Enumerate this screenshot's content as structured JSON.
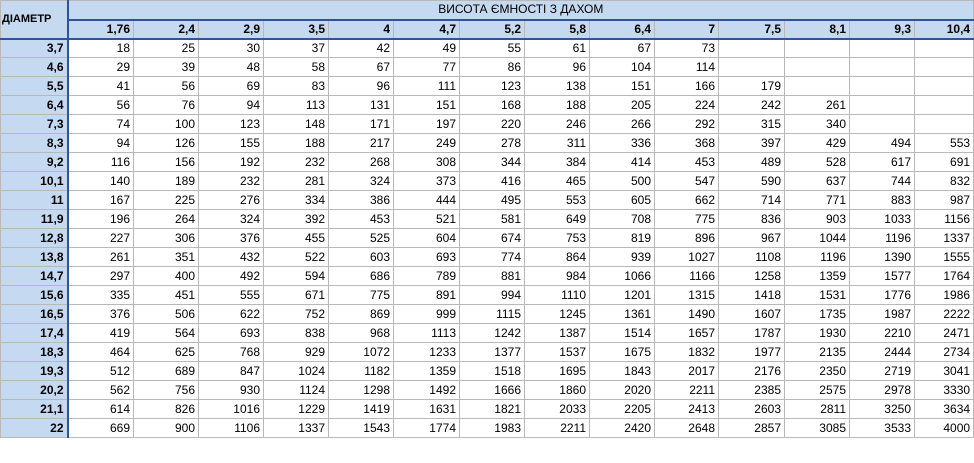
{
  "table": {
    "corner_label": "ДІАМЕТР",
    "title": "ВИСОТА ЄМНОСТІ З ДАХОМ",
    "heights": [
      "1,76",
      "2,4",
      "2,9",
      "3,5",
      "4",
      "4,7",
      "5,2",
      "5,8",
      "6,4",
      "7",
      "7,5",
      "8,1",
      "9,3",
      "10,4"
    ],
    "rows": [
      {
        "diameter": "3,7",
        "values": [
          "18",
          "25",
          "30",
          "37",
          "42",
          "49",
          "55",
          "61",
          "67",
          "73",
          "",
          "",
          "",
          ""
        ]
      },
      {
        "diameter": "4,6",
        "values": [
          "29",
          "39",
          "48",
          "58",
          "67",
          "77",
          "86",
          "96",
          "104",
          "114",
          "",
          "",
          "",
          ""
        ]
      },
      {
        "diameter": "5,5",
        "values": [
          "41",
          "56",
          "69",
          "83",
          "96",
          "111",
          "123",
          "138",
          "151",
          "166",
          "179",
          "",
          "",
          ""
        ]
      },
      {
        "diameter": "6,4",
        "values": [
          "56",
          "76",
          "94",
          "113",
          "131",
          "151",
          "168",
          "188",
          "205",
          "224",
          "242",
          "261",
          "",
          ""
        ]
      },
      {
        "diameter": "7,3",
        "values": [
          "74",
          "100",
          "123",
          "148",
          "171",
          "197",
          "220",
          "246",
          "266",
          "292",
          "315",
          "340",
          "",
          ""
        ]
      },
      {
        "diameter": "8,3",
        "values": [
          "94",
          "126",
          "155",
          "188",
          "217",
          "249",
          "278",
          "311",
          "336",
          "368",
          "397",
          "429",
          "494",
          "553"
        ]
      },
      {
        "diameter": "9,2",
        "values": [
          "116",
          "156",
          "192",
          "232",
          "268",
          "308",
          "344",
          "384",
          "414",
          "453",
          "489",
          "528",
          "617",
          "691"
        ]
      },
      {
        "diameter": "10,1",
        "values": [
          "140",
          "189",
          "232",
          "281",
          "324",
          "373",
          "416",
          "465",
          "500",
          "547",
          "590",
          "637",
          "744",
          "832"
        ]
      },
      {
        "diameter": "11",
        "values": [
          "167",
          "225",
          "276",
          "334",
          "386",
          "444",
          "495",
          "553",
          "605",
          "662",
          "714",
          "771",
          "883",
          "987"
        ]
      },
      {
        "diameter": "11,9",
        "values": [
          "196",
          "264",
          "324",
          "392",
          "453",
          "521",
          "581",
          "649",
          "708",
          "775",
          "836",
          "903",
          "1033",
          "1156"
        ]
      },
      {
        "diameter": "12,8",
        "values": [
          "227",
          "306",
          "376",
          "455",
          "525",
          "604",
          "674",
          "753",
          "819",
          "896",
          "967",
          "1044",
          "1196",
          "1337"
        ]
      },
      {
        "diameter": "13,8",
        "values": [
          "261",
          "351",
          "432",
          "522",
          "603",
          "693",
          "774",
          "864",
          "939",
          "1027",
          "1108",
          "1196",
          "1390",
          "1555"
        ]
      },
      {
        "diameter": "14,7",
        "values": [
          "297",
          "400",
          "492",
          "594",
          "686",
          "789",
          "881",
          "984",
          "1066",
          "1166",
          "1258",
          "1359",
          "1577",
          "1764"
        ]
      },
      {
        "diameter": "15,6",
        "values": [
          "335",
          "451",
          "555",
          "671",
          "775",
          "891",
          "994",
          "1110",
          "1201",
          "1315",
          "1418",
          "1531",
          "1776",
          "1986"
        ]
      },
      {
        "diameter": "16,5",
        "values": [
          "376",
          "506",
          "622",
          "752",
          "869",
          "999",
          "1115",
          "1245",
          "1361",
          "1490",
          "1607",
          "1735",
          "1987",
          "2222"
        ]
      },
      {
        "diameter": "17,4",
        "values": [
          "419",
          "564",
          "693",
          "838",
          "968",
          "1113",
          "1242",
          "1387",
          "1514",
          "1657",
          "1787",
          "1930",
          "2210",
          "2471"
        ]
      },
      {
        "diameter": "18,3",
        "values": [
          "464",
          "625",
          "768",
          "929",
          "1072",
          "1233",
          "1377",
          "1537",
          "1675",
          "1832",
          "1977",
          "2135",
          "2444",
          "2734"
        ]
      },
      {
        "diameter": "19,3",
        "values": [
          "512",
          "689",
          "847",
          "1024",
          "1182",
          "1359",
          "1518",
          "1695",
          "1843",
          "2017",
          "2176",
          "2350",
          "2719",
          "3041"
        ]
      },
      {
        "diameter": "20,2",
        "values": [
          "562",
          "756",
          "930",
          "1124",
          "1298",
          "1492",
          "1666",
          "1860",
          "2020",
          "2211",
          "2385",
          "2575",
          "2978",
          "3330"
        ]
      },
      {
        "diameter": "21,1",
        "values": [
          "614",
          "826",
          "1016",
          "1229",
          "1419",
          "1631",
          "1821",
          "2033",
          "2205",
          "2413",
          "2603",
          "2811",
          "3250",
          "3634"
        ]
      },
      {
        "diameter": "22",
        "values": [
          "669",
          "900",
          "1106",
          "1337",
          "1543",
          "1774",
          "1983",
          "2211",
          "2420",
          "2648",
          "2857",
          "3085",
          "3533",
          "4000"
        ]
      }
    ]
  }
}
